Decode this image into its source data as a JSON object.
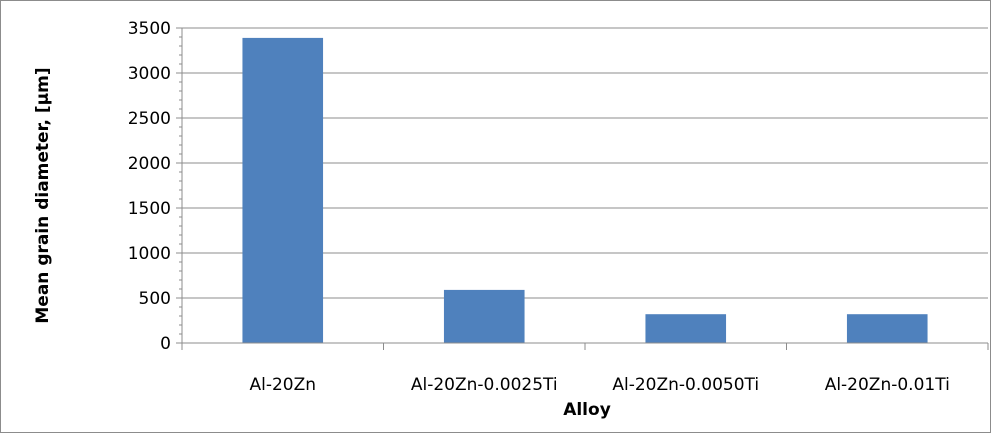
{
  "chart_data": {
    "type": "bar",
    "title": "",
    "xlabel": "Alloy",
    "ylabel": "Mean grain diameter, [µm]",
    "categories": [
      "Al-20Zn",
      "Al-20Zn-0.0025Ti",
      "Al-20Zn-0.0050Ti",
      "Al-20Zn-0.01Ti"
    ],
    "values": [
      3390,
      590,
      320,
      320
    ],
    "ylim": [
      0,
      3500
    ],
    "ytick_step": 500,
    "y_minor_step": 100,
    "grid": true,
    "legend": "none",
    "bar_color": "#4f81bd",
    "grid_color": "#8c8c8c"
  }
}
